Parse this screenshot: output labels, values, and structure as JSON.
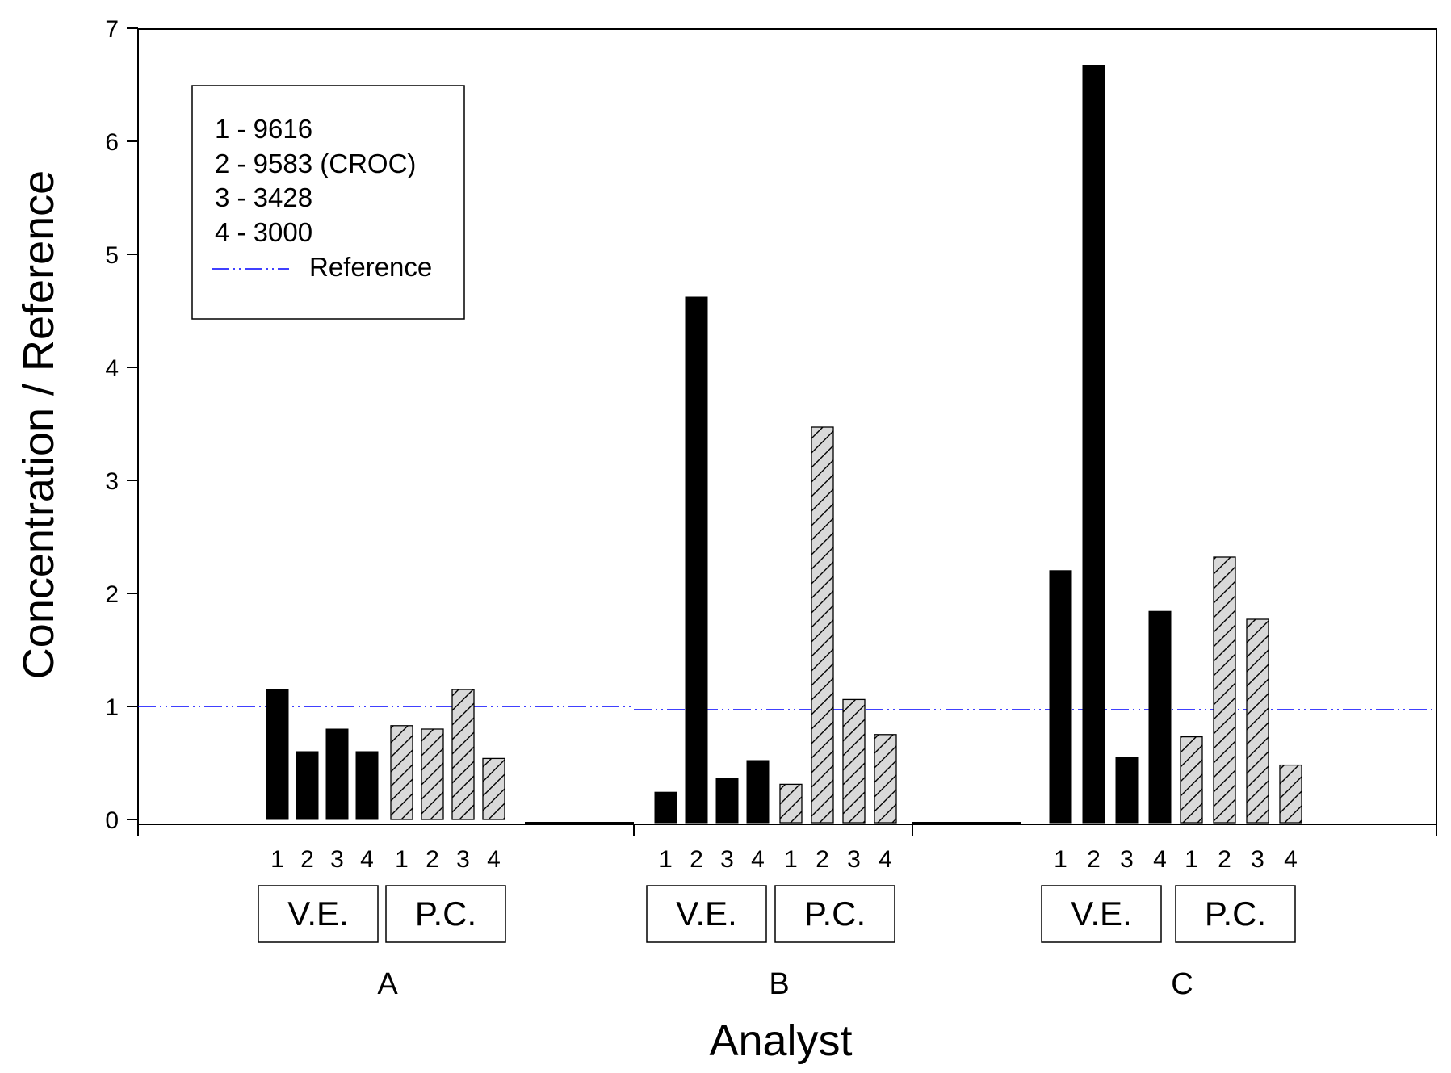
{
  "chart_data": {
    "type": "bar",
    "title": "",
    "xlabel": "Analyst",
    "ylabel": "Concentration / Reference",
    "ylim": [
      0,
      7
    ],
    "yticks": [
      "0",
      "1",
      "2",
      "3",
      "4",
      "5",
      "6",
      "7"
    ],
    "bar_numbers": [
      "1",
      "2",
      "3",
      "4"
    ],
    "legend": {
      "entries": [
        "1 - 9616",
        "2 - 9583 (CROC)",
        "3 - 3428",
        "4 - 3000"
      ],
      "reference_label": "Reference"
    },
    "method_labels": {
      "ve": "V.E.",
      "pc": "P.C."
    },
    "reference_color": "#0000ff",
    "series": [
      {
        "name": "V.E.",
        "style": "solid-black"
      },
      {
        "name": "P.C.",
        "style": "hatched-gray"
      }
    ],
    "analysts": [
      {
        "name": "A",
        "ve": [
          1.15,
          0.6,
          0.8,
          0.6
        ],
        "pc": [
          0.83,
          0.8,
          1.15,
          0.54
        ],
        "reference": 1.0
      },
      {
        "name": "B",
        "ve": [
          0.27,
          4.65,
          0.39,
          0.55
        ],
        "pc": [
          0.34,
          3.5,
          1.09,
          0.78
        ],
        "reference": 1.0
      },
      {
        "name": "C",
        "ve": [
          2.23,
          6.7,
          0.58,
          1.87
        ],
        "pc": [
          0.76,
          2.35,
          1.8,
          0.51
        ],
        "reference": 1.0
      }
    ]
  }
}
